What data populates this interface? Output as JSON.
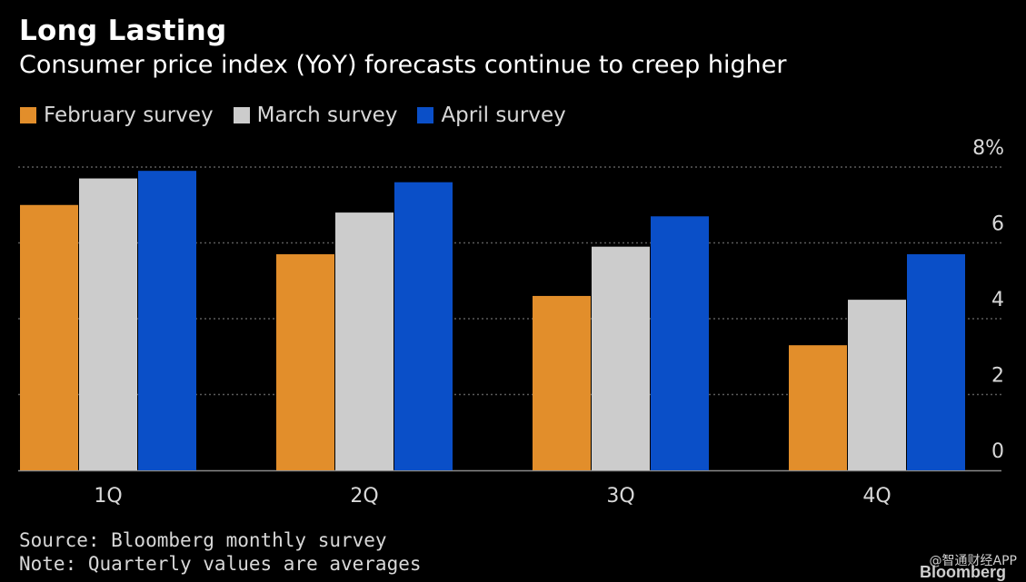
{
  "header": {
    "title": "Long Lasting",
    "subtitle": "Consumer price index (YoY) forecasts continue to creep higher"
  },
  "footer": {
    "source": "Source: Bloomberg monthly survey",
    "note": "Note: Quarterly values are averages"
  },
  "watermark": "@智通财经APP",
  "brand": "Bloomberg",
  "colors": {
    "background": "#000000",
    "february": "#E28E2B",
    "march": "#CCCCCC",
    "april": "#0A4FC8",
    "grid": "#5a5a5a",
    "axis_text": "#d8d8d8"
  },
  "chart_data": {
    "type": "bar",
    "categories": [
      "1Q",
      "2Q",
      "3Q",
      "4Q"
    ],
    "series": [
      {
        "name": "February survey",
        "color": "#E28E2B",
        "values": [
          7.0,
          5.7,
          4.6,
          3.3
        ]
      },
      {
        "name": "March survey",
        "color": "#CCCCCC",
        "values": [
          7.7,
          6.8,
          5.9,
          4.5
        ]
      },
      {
        "name": "April survey",
        "color": "#0A4FC8",
        "values": [
          7.9,
          7.6,
          6.7,
          5.7
        ]
      }
    ],
    "y_ticks": [
      0,
      2,
      4,
      6,
      8
    ],
    "y_tick_labels": [
      "0",
      "2",
      "4",
      "6",
      "8%"
    ],
    "ylim": [
      0,
      8
    ],
    "grid": true,
    "grid_style": "dotted",
    "y_axis_side": "right",
    "legend_position": "top-left"
  }
}
